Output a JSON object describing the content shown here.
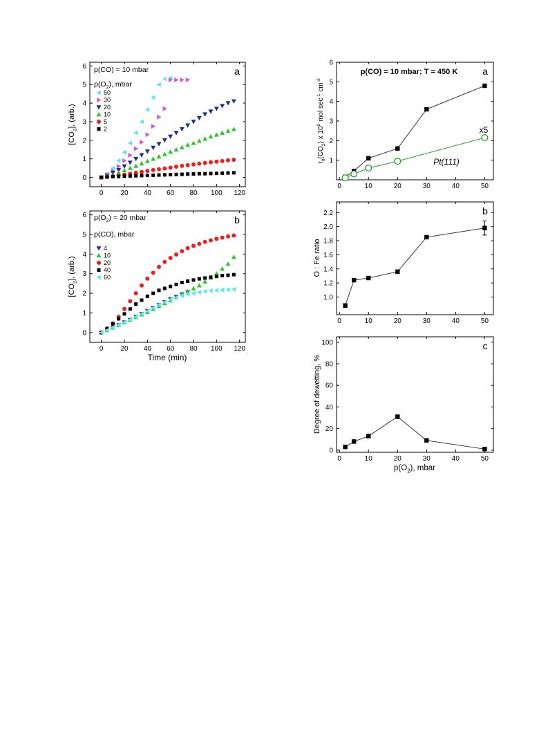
{
  "chart_data": [
    {
      "id": "left-a",
      "type": "scatter",
      "panel_label": "a",
      "annotation": "p(CO) = 10 mbar",
      "legend_title": "p(O2), mbar",
      "ylabel": "[CO2], (arb.)",
      "xlabel": "",
      "xlim": [
        -10,
        125
      ],
      "ylim": [
        -0.5,
        6.2
      ],
      "xticks": [
        "0",
        "20",
        "40",
        "60",
        "80",
        "100",
        "120"
      ],
      "yticks": [
        "0",
        "1",
        "2",
        "3",
        "4",
        "5",
        "6"
      ],
      "series": [
        {
          "name": "50",
          "marker": "tri-left",
          "color": "#5ce6f2",
          "x": [
            0,
            5,
            10,
            15,
            20,
            25,
            30,
            35,
            40,
            45,
            50,
            55,
            60
          ],
          "y": [
            0,
            0.2,
            0.5,
            0.9,
            1.35,
            1.85,
            2.4,
            3.0,
            3.65,
            4.3,
            5.0,
            5.3,
            5.35
          ]
        },
        {
          "name": "30",
          "marker": "tri-right",
          "color": "#e052c8",
          "x": [
            0,
            5,
            10,
            15,
            20,
            25,
            30,
            35,
            40,
            45,
            50,
            55,
            60,
            65,
            70,
            75
          ],
          "y": [
            0,
            0.15,
            0.35,
            0.6,
            0.9,
            1.2,
            1.55,
            1.9,
            2.3,
            2.75,
            3.25,
            3.7,
            5.25,
            5.25,
            5.25,
            5.25
          ]
        },
        {
          "name": "20",
          "marker": "tri-down",
          "color": "#1e2e8f",
          "x": [
            0,
            5,
            10,
            15,
            20,
            25,
            30,
            35,
            40,
            45,
            50,
            55,
            60,
            65,
            70,
            75,
            80,
            85,
            90,
            95,
            100,
            105,
            110,
            115
          ],
          "y": [
            0,
            0.1,
            0.25,
            0.4,
            0.6,
            0.8,
            1.0,
            1.2,
            1.4,
            1.6,
            1.8,
            2.0,
            2.2,
            2.4,
            2.6,
            2.8,
            3.0,
            3.2,
            3.4,
            3.55,
            3.7,
            3.85,
            4.0,
            4.1
          ]
        },
        {
          "name": "10",
          "marker": "tri-up",
          "color": "#2ec52e",
          "x": [
            0,
            5,
            10,
            15,
            20,
            25,
            30,
            35,
            40,
            45,
            50,
            55,
            60,
            65,
            70,
            75,
            80,
            85,
            90,
            95,
            100,
            105,
            110,
            115
          ],
          "y": [
            0,
            0.07,
            0.15,
            0.25,
            0.38,
            0.5,
            0.62,
            0.75,
            0.88,
            1.0,
            1.12,
            1.25,
            1.38,
            1.5,
            1.62,
            1.75,
            1.85,
            1.97,
            2.08,
            2.2,
            2.3,
            2.4,
            2.5,
            2.6
          ]
        },
        {
          "name": "5",
          "marker": "circle",
          "color": "#ef1e1e",
          "x": [
            0,
            5,
            10,
            15,
            20,
            25,
            30,
            35,
            40,
            45,
            50,
            55,
            60,
            65,
            70,
            75,
            80,
            85,
            90,
            95,
            100,
            105,
            110,
            115
          ],
          "y": [
            0,
            0.03,
            0.07,
            0.11,
            0.15,
            0.2,
            0.25,
            0.3,
            0.35,
            0.4,
            0.44,
            0.48,
            0.53,
            0.58,
            0.62,
            0.66,
            0.7,
            0.74,
            0.78,
            0.82,
            0.85,
            0.88,
            0.92,
            0.95
          ]
        },
        {
          "name": "2",
          "marker": "square",
          "color": "#000000",
          "x": [
            0,
            5,
            10,
            15,
            20,
            25,
            30,
            35,
            40,
            45,
            50,
            55,
            60,
            65,
            70,
            75,
            80,
            85,
            90,
            95,
            100,
            105,
            110,
            115
          ],
          "y": [
            0,
            0.02,
            0.04,
            0.05,
            0.07,
            0.08,
            0.09,
            0.1,
            0.11,
            0.12,
            0.13,
            0.14,
            0.15,
            0.16,
            0.17,
            0.18,
            0.19,
            0.2,
            0.2,
            0.21,
            0.22,
            0.23,
            0.24,
            0.25
          ]
        }
      ]
    },
    {
      "id": "left-b",
      "type": "scatter",
      "panel_label": "b",
      "annotation": "p(O2) = 20 mbar",
      "legend_title": "p(CO), mbar",
      "ylabel": "[CO2], (arb.)",
      "xlabel": "Time (min)",
      "xlim": [
        -10,
        125
      ],
      "ylim": [
        -0.5,
        6.2
      ],
      "xticks": [
        "0",
        "20",
        "40",
        "60",
        "80",
        "100",
        "120"
      ],
      "yticks": [
        "0",
        "1",
        "2",
        "3",
        "4",
        "5",
        "6"
      ],
      "series": [
        {
          "name": "4",
          "marker": "tri-down",
          "color": "#1e2e8f",
          "x": [
            0,
            5,
            10,
            15,
            20,
            25,
            30,
            35,
            40,
            45,
            50,
            55,
            60,
            65,
            70,
            75
          ],
          "y": [
            0,
            0.12,
            0.25,
            0.38,
            0.52,
            0.65,
            0.8,
            0.95,
            1.1,
            1.25,
            1.4,
            1.55,
            1.7,
            1.82,
            1.95,
            2.05
          ]
        },
        {
          "name": "10",
          "marker": "tri-up",
          "color": "#2ec52e",
          "x": [
            0,
            5,
            10,
            15,
            20,
            25,
            30,
            35,
            40,
            45,
            50,
            55,
            60,
            65,
            70,
            75,
            80,
            85,
            90,
            95,
            100,
            105,
            110,
            115
          ],
          "y": [
            0,
            0.12,
            0.25,
            0.38,
            0.52,
            0.65,
            0.78,
            0.92,
            1.05,
            1.2,
            1.35,
            1.5,
            1.65,
            1.8,
            1.95,
            2.1,
            2.25,
            2.4,
            2.6,
            2.8,
            3.0,
            3.25,
            3.5,
            3.85
          ]
        },
        {
          "name": "20",
          "marker": "circle",
          "color": "#ef1e1e",
          "x": [
            0,
            5,
            10,
            15,
            20,
            25,
            30,
            35,
            40,
            45,
            50,
            55,
            60,
            65,
            70,
            75,
            80,
            85,
            90,
            95,
            100,
            105,
            110,
            115
          ],
          "y": [
            0,
            0.2,
            0.45,
            0.8,
            1.2,
            1.6,
            2.0,
            2.4,
            2.75,
            3.05,
            3.35,
            3.6,
            3.8,
            3.98,
            4.15,
            4.3,
            4.42,
            4.52,
            4.62,
            4.7,
            4.78,
            4.84,
            4.9,
            4.95
          ]
        },
        {
          "name": "40",
          "marker": "square",
          "color": "#000000",
          "x": [
            0,
            5,
            10,
            15,
            20,
            25,
            30,
            35,
            40,
            45,
            50,
            55,
            60,
            65,
            70,
            75,
            80,
            85,
            90,
            95,
            100,
            105,
            110,
            115
          ],
          "y": [
            0,
            0.2,
            0.45,
            0.7,
            0.95,
            1.2,
            1.45,
            1.65,
            1.85,
            2.0,
            2.15,
            2.25,
            2.35,
            2.45,
            2.55,
            2.62,
            2.68,
            2.74,
            2.78,
            2.82,
            2.86,
            2.9,
            2.92,
            2.95
          ]
        },
        {
          "name": "60",
          "marker": "tri-left",
          "color": "#5ce6f2",
          "x": [
            0,
            5,
            10,
            15,
            20,
            25,
            30,
            35,
            40,
            45,
            50,
            55,
            60,
            65,
            70,
            75,
            80,
            85,
            90,
            95,
            100,
            105,
            110,
            115
          ],
          "y": [
            0,
            0.12,
            0.25,
            0.38,
            0.52,
            0.65,
            0.8,
            0.95,
            1.1,
            1.25,
            1.4,
            1.55,
            1.68,
            1.78,
            1.88,
            1.95,
            2.0,
            2.05,
            2.1,
            2.13,
            2.15,
            2.17,
            2.19,
            2.2
          ]
        }
      ]
    },
    {
      "id": "right-a",
      "type": "line",
      "panel_label": "a",
      "annotation": "p(CO) = 10 mbar; T = 450 K",
      "ylabel": "r0(CO2) x 10^9 mol sec^-1 cm^-2",
      "xlabel": "",
      "xlim": [
        -1,
        53
      ],
      "ylim": [
        0,
        6
      ],
      "xticks": [
        "0",
        "10",
        "20",
        "30",
        "40",
        "50"
      ],
      "yticks": [
        "1",
        "2",
        "3",
        "4",
        "5",
        "6"
      ],
      "series": [
        {
          "name": "",
          "marker": "square",
          "color": "#000000",
          "x": [
            2,
            5,
            10,
            20,
            30,
            50
          ],
          "y": [
            0.15,
            0.45,
            1.1,
            1.6,
            3.6,
            4.8
          ]
        },
        {
          "name": "Pt(111)",
          "marker": "open-circle",
          "color": "#2a9a2a",
          "x": [
            2,
            5,
            10,
            20,
            50
          ],
          "y": [
            0.1,
            0.3,
            0.6,
            0.95,
            2.15
          ]
        }
      ],
      "notes": {
        "scale": "x5",
        "series_label": "Pt(111)"
      }
    },
    {
      "id": "right-b",
      "type": "line",
      "panel_label": "b",
      "ylabel": "O : Fe ratio",
      "xlabel": "",
      "xlim": [
        -1,
        53
      ],
      "ylim": [
        0.75,
        2.35
      ],
      "xticks": [
        "0",
        "10",
        "20",
        "30",
        "40",
        "50"
      ],
      "yticks": [
        "1.0",
        "1.2",
        "1.4",
        "1.6",
        "1.8",
        "2.0",
        "2.2"
      ],
      "series": [
        {
          "name": "",
          "marker": "square",
          "color": "#000000",
          "x": [
            2,
            5,
            10,
            20,
            30,
            50
          ],
          "y": [
            0.88,
            1.24,
            1.27,
            1.36,
            1.85,
            1.98
          ],
          "err": [
            0,
            0,
            0,
            0,
            0,
            0.1
          ]
        }
      ]
    },
    {
      "id": "right-c",
      "type": "line",
      "panel_label": "c",
      "ylabel": "Degree of dewetting, %",
      "xlabel": "p(O2), mbar",
      "xlim": [
        -1,
        53
      ],
      "ylim": [
        -2,
        105
      ],
      "xticks": [
        "0",
        "10",
        "20",
        "30",
        "40",
        "50"
      ],
      "yticks": [
        "0",
        "20",
        "40",
        "60",
        "80",
        "100"
      ],
      "series": [
        {
          "name": "",
          "marker": "square",
          "color": "#000000",
          "x": [
            2,
            5,
            10,
            20,
            30,
            50
          ],
          "y": [
            3,
            8,
            13,
            31,
            9,
            1
          ]
        }
      ]
    }
  ]
}
